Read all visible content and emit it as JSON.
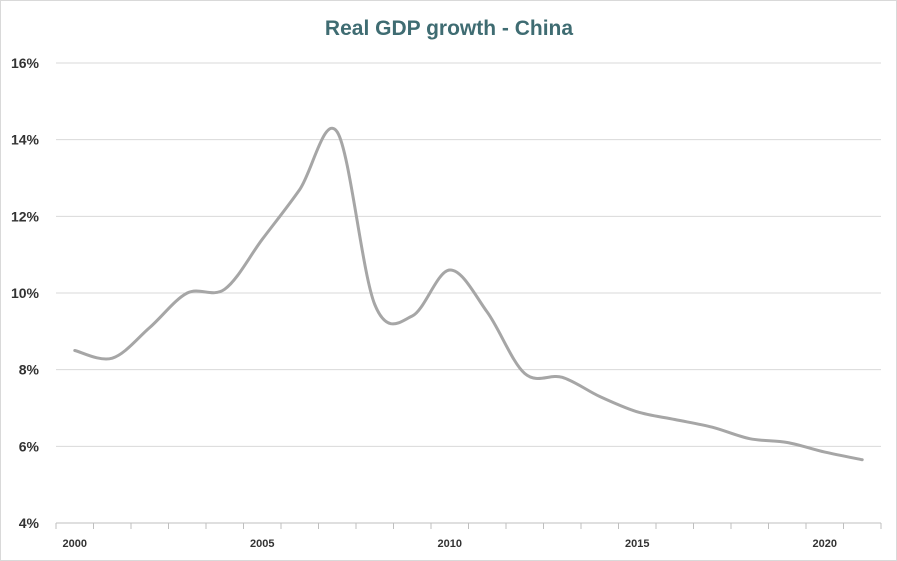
{
  "chart_data": {
    "type": "line",
    "title": "Real GDP growth - China",
    "xlabel": "",
    "ylabel": "",
    "x": [
      2000,
      2001,
      2002,
      2003,
      2004,
      2005,
      2006,
      2007,
      2008,
      2009,
      2010,
      2011,
      2012,
      2013,
      2014,
      2015,
      2016,
      2017,
      2018,
      2019,
      2020,
      2021
    ],
    "series": [
      {
        "values": [
          8.5,
          8.3,
          9.1,
          10.0,
          10.1,
          11.4,
          12.7,
          14.2,
          9.7,
          9.4,
          10.6,
          9.5,
          7.9,
          7.8,
          7.3,
          6.9,
          6.7,
          6.5,
          6.2,
          6.1,
          5.85,
          5.65
        ],
        "color": "#a6a6a6"
      }
    ],
    "ylim": [
      4,
      16
    ],
    "yticks": [
      "4%",
      "6%",
      "8%",
      "10%",
      "12%",
      "14%",
      "16%"
    ],
    "xticks": [
      "2000",
      "2005",
      "2010",
      "2015",
      "2020"
    ],
    "grid": true,
    "legend": "none"
  }
}
